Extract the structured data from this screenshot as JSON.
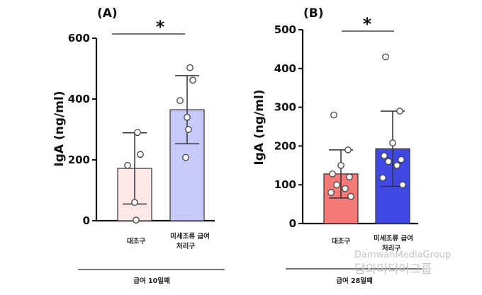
{
  "chart_data": [
    {
      "type": "bar",
      "panel": "(A)",
      "ylabel": "IgA (ng/ml)",
      "ylim": [
        0,
        600
      ],
      "yticks": [
        0,
        200,
        400,
        600
      ],
      "categories": [
        "대조구",
        "미세조류 급여 처리구"
      ],
      "values": [
        172,
        365
      ],
      "errors": [
        117,
        112
      ],
      "points": [
        [
          290,
          218,
          182,
          60,
          2
        ],
        [
          503,
          462,
          395,
          340,
          300,
          208
        ]
      ],
      "colors": [
        "#fde7e7",
        "#c7c9f8"
      ],
      "significance": "*",
      "period_label": "급여 10일째"
    },
    {
      "type": "bar",
      "panel": "(B)",
      "ylabel": "IgA (ng/ml)",
      "ylim": [
        0,
        500
      ],
      "yticks": [
        0,
        100,
        200,
        300,
        400,
        500
      ],
      "categories": [
        "대조구",
        "미세조류 급여 처리구"
      ],
      "values": [
        128,
        193
      ],
      "errors": [
        62,
        97
      ],
      "points": [
        [
          280,
          190,
          150,
          128,
          120,
          100,
          90,
          80,
          70
        ],
        [
          430,
          290,
          208,
          175,
          165,
          160,
          150,
          118,
          100
        ]
      ],
      "colors": [
        "#f47a78",
        "#4048e4"
      ],
      "significance": "*",
      "period_label": "급여 28일째"
    }
  ],
  "watermark": {
    "line1": "DamwahMediaGroup",
    "line2": "담와미디어그룹"
  }
}
